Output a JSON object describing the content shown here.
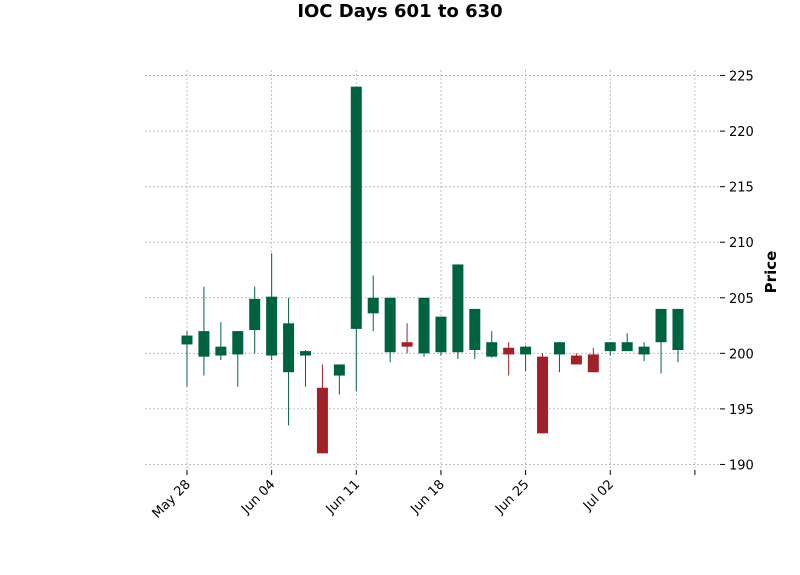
{
  "chart_data": {
    "type": "candlestick",
    "title": "IOC Days 601 to 630",
    "ylabel": "Price",
    "ylim": [
      189.5,
      225.5
    ],
    "y_ticks": [
      190,
      195,
      200,
      205,
      210,
      215,
      220,
      225
    ],
    "grid": true,
    "axis_side": "right",
    "x_tick_labels": [
      "May 28",
      "Jun 04",
      "Jun 11",
      "Jun 18",
      "Jun 25",
      "Jul 02",
      ""
    ],
    "x_tick_index": [
      0,
      5,
      10,
      15,
      20,
      25,
      30
    ],
    "colors": {
      "up": "#006340",
      "down": "#a02128"
    },
    "candles": [
      {
        "open": 200.8,
        "high": 202.0,
        "low": 197.0,
        "close": 201.6
      },
      {
        "open": 199.7,
        "high": 206.0,
        "low": 198.0,
        "close": 202.0
      },
      {
        "open": 199.8,
        "high": 202.8,
        "low": 199.4,
        "close": 200.6
      },
      {
        "open": 199.9,
        "high": 202.0,
        "low": 197.0,
        "close": 202.0
      },
      {
        "open": 202.1,
        "high": 206.0,
        "low": 200.0,
        "close": 204.9
      },
      {
        "open": 199.8,
        "high": 209.0,
        "low": 199.4,
        "close": 205.1
      },
      {
        "open": 198.3,
        "high": 205.0,
        "low": 193.5,
        "close": 202.7
      },
      {
        "open": 199.8,
        "high": 200.3,
        "low": 197.0,
        "close": 200.2
      },
      {
        "open": 196.9,
        "high": 199.0,
        "low": 191.0,
        "close": 191.0
      },
      {
        "open": 198.0,
        "high": 199.0,
        "low": 196.3,
        "close": 199.0
      },
      {
        "open": 202.2,
        "high": 224.0,
        "low": 196.6,
        "close": 224.0
      },
      {
        "open": 203.6,
        "high": 207.0,
        "low": 202.0,
        "close": 205.0
      },
      {
        "open": 200.1,
        "high": 205.0,
        "low": 199.2,
        "close": 205.0
      },
      {
        "open": 201.0,
        "high": 202.7,
        "low": 200.0,
        "close": 200.6
      },
      {
        "open": 200.0,
        "high": 205.0,
        "low": 199.7,
        "close": 205.0
      },
      {
        "open": 200.1,
        "high": 203.3,
        "low": 199.8,
        "close": 203.3
      },
      {
        "open": 200.1,
        "high": 208.0,
        "low": 199.5,
        "close": 208.0
      },
      {
        "open": 200.3,
        "high": 204.0,
        "low": 199.5,
        "close": 204.0
      },
      {
        "open": 199.7,
        "high": 202.0,
        "low": 199.6,
        "close": 201.0
      },
      {
        "open": 200.5,
        "high": 201.0,
        "low": 198.0,
        "close": 199.9
      },
      {
        "open": 199.9,
        "high": 200.7,
        "low": 198.4,
        "close": 200.6
      },
      {
        "open": 199.7,
        "high": 200.0,
        "low": 192.8,
        "close": 192.8
      },
      {
        "open": 199.9,
        "high": 201.0,
        "low": 198.3,
        "close": 201.0
      },
      {
        "open": 199.8,
        "high": 200.0,
        "low": 199.0,
        "close": 199.0
      },
      {
        "open": 199.9,
        "high": 200.5,
        "low": 198.3,
        "close": 198.3
      },
      {
        "open": 200.2,
        "high": 201.0,
        "low": 199.8,
        "close": 201.0
      },
      {
        "open": 200.2,
        "high": 201.8,
        "low": 200.2,
        "close": 201.0
      },
      {
        "open": 199.9,
        "high": 201.0,
        "low": 199.3,
        "close": 200.6
      },
      {
        "open": 201.0,
        "high": 204.0,
        "low": 198.2,
        "close": 204.0
      },
      {
        "open": 200.3,
        "high": 204.0,
        "low": 199.2,
        "close": 204.0
      }
    ]
  }
}
